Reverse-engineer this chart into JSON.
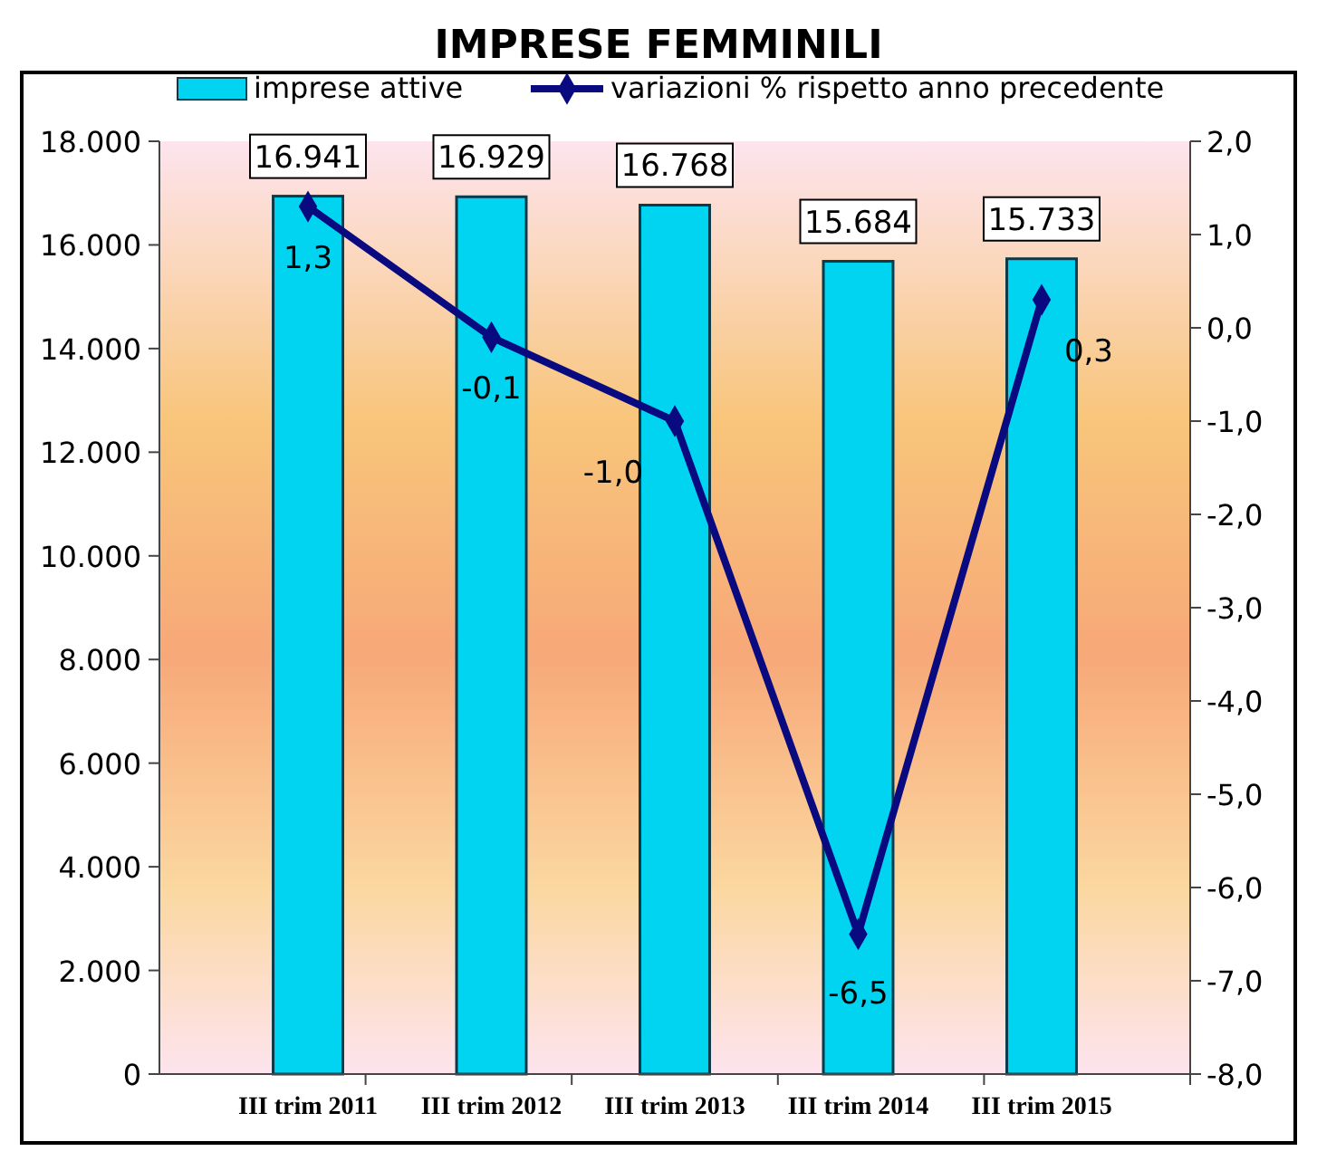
{
  "chart_data": {
    "type": "bar",
    "title": "IMPRESE FEMMINILI",
    "categories": [
      "III trim 2011",
      "III trim 2012",
      "III trim 2013",
      "III trim 2014",
      "III trim 2015"
    ],
    "series": [
      {
        "name": "imprese attive",
        "color": "#00d4f0",
        "values": [
          16941,
          16929,
          16768,
          15684,
          15733
        ],
        "value_labels": [
          "16.941",
          "16.929",
          "16.768",
          "15.684",
          "15.733"
        ]
      },
      {
        "name": "variazioni % rispetto anno precedente",
        "type": "line",
        "axis": "y2",
        "color": "#0a0a80",
        "marker": "diamond",
        "values": [
          1.3,
          -0.1,
          -1.0,
          -6.5,
          0.3
        ],
        "value_labels": [
          "1,3",
          "-0,1",
          "-1,0",
          "-6,5",
          "0,3"
        ]
      }
    ],
    "ylim": [
      0,
      18000
    ],
    "yticks": [
      0,
      {
        "value": 2000,
        "label": "2.000"
      },
      {
        "value": 4000,
        "label": "4.000"
      },
      {
        "value": 6000,
        "label": "6.000"
      },
      {
        "value": 8000,
        "label": "8.000"
      },
      {
        "value": 10000,
        "label": "10.000"
      },
      {
        "value": 12000,
        "label": "12.000"
      },
      {
        "value": 14000,
        "label": "14.000"
      },
      {
        "value": 16000,
        "label": "16.000"
      },
      {
        "value": 18000,
        "label": "18.000"
      }
    ],
    "y2lim": [
      -8,
      2
    ],
    "y2ticks": [
      {
        "value": -8,
        "label": "-8,0"
      },
      {
        "value": -7,
        "label": "-7,0"
      },
      {
        "value": -6,
        "label": "-6,0"
      },
      {
        "value": -5,
        "label": "-5,0"
      },
      {
        "value": -4,
        "label": "-4,0"
      },
      {
        "value": -3,
        "label": "-3,0"
      },
      {
        "value": -2,
        "label": "-2,0"
      },
      {
        "value": -1,
        "label": "-1,0"
      },
      {
        "value": 0,
        "label": "0,0"
      },
      {
        "value": 1,
        "label": "1,0"
      },
      {
        "value": 2,
        "label": "2,0"
      }
    ],
    "legend": "top",
    "grid": false
  }
}
